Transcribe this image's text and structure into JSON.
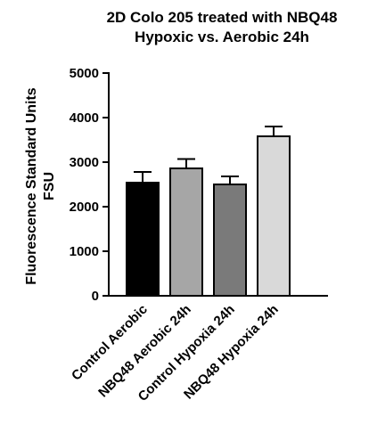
{
  "chart_data": {
    "type": "bar",
    "title_lines": [
      "2D Colo 205 treated with NBQ48",
      "Hypoxic vs. Aerobic  24h"
    ],
    "ylabel_lines": [
      "Fluorescence Standard Units",
      "FSU"
    ],
    "xlabel": "",
    "ylim": [
      0,
      5000
    ],
    "yticks": [
      0,
      1000,
      2000,
      3000,
      4000,
      5000
    ],
    "categories": [
      "Control Aerobic",
      "NBQ48 Aerobic 24h",
      "Control Hypoxia 24h",
      "NBQ48 Hypoxia 24h"
    ],
    "values": [
      2540,
      2860,
      2500,
      3580
    ],
    "errors": [
      240,
      210,
      180,
      220
    ],
    "colors": [
      "#000000",
      "#a6a6a6",
      "#7a7a7a",
      "#d9d9d9"
    ],
    "grid": false,
    "legend": "none"
  }
}
